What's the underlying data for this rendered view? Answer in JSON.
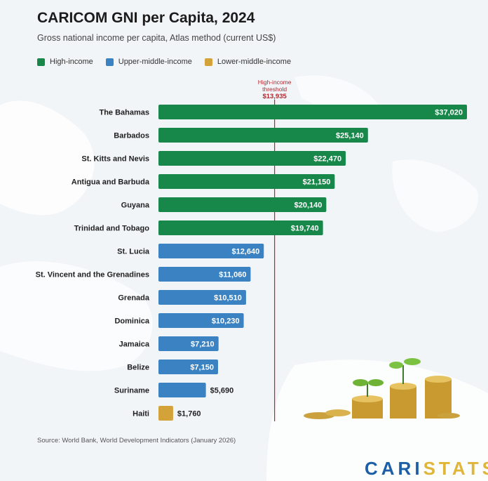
{
  "header": {
    "title": "CARICOM GNI per Capita, 2024",
    "subtitle": "Gross national income per capita, Atlas method (current US$)"
  },
  "legend": [
    {
      "label": "High-income",
      "color": "#17874a"
    },
    {
      "label": "Upper-middle-income",
      "color": "#3a82c1"
    },
    {
      "label": "Lower-middle-income",
      "color": "#d3a33a"
    }
  ],
  "chart_data": {
    "type": "bar",
    "orientation": "horizontal",
    "categories": [
      "The Bahamas",
      "Barbados",
      "St. Kitts and Nevis",
      "Antigua and Barbuda",
      "Guyana",
      "Trinidad and Tobago",
      "St. Lucia",
      "St. Vincent and the Grenadines",
      "Grenada",
      "Dominica",
      "Jamaica",
      "Belize",
      "Suriname",
      "Haiti"
    ],
    "values": [
      37020,
      25140,
      22470,
      21150,
      20140,
      19740,
      12640,
      11060,
      10510,
      10230,
      7210,
      7150,
      5690,
      1760
    ],
    "value_labels": [
      "$37,020",
      "$25,140",
      "$22,470",
      "$21,150",
      "$20,140",
      "$19,740",
      "$12,640",
      "$11,060",
      "$10,510",
      "$10,230",
      "$7,210",
      "$7,150",
      "$5,690",
      "$1,760"
    ],
    "income_group": [
      "High-income",
      "High-income",
      "High-income",
      "High-income",
      "High-income",
      "High-income",
      "Upper-middle-income",
      "Upper-middle-income",
      "Upper-middle-income",
      "Upper-middle-income",
      "Upper-middle-income",
      "Upper-middle-income",
      "Upper-middle-income",
      "Lower-middle-income"
    ],
    "xlim": [
      0,
      37020
    ],
    "grid": false,
    "legend_position": "top-left",
    "reference_line": {
      "value": 13935,
      "label_lines": [
        "High-income",
        "threshold",
        "$13,935"
      ],
      "color": "#b3262e"
    }
  },
  "footer": {
    "source": "Source: World Bank, World Development Indicators (January 2026)",
    "brand_part1": "CARI",
    "brand_part2": "STATS"
  }
}
